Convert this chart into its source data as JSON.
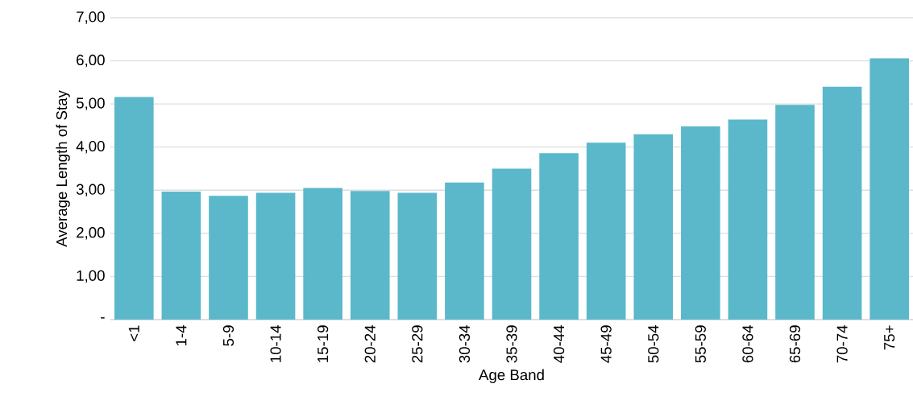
{
  "chart_data": {
    "type": "bar",
    "xlabel": "Age Band",
    "ylabel": "Average Length of Stay",
    "categories": [
      "<1",
      "1-4",
      "5-9",
      "10-14",
      "15-19",
      "20-24",
      "25-29",
      "30-34",
      "35-39",
      "40-44",
      "45-49",
      "50-54",
      "55-59",
      "60-64",
      "65-69",
      "70-74",
      "75+"
    ],
    "values": [
      5.16,
      2.97,
      2.87,
      2.94,
      3.05,
      2.98,
      2.94,
      3.18,
      3.5,
      3.86,
      4.1,
      4.3,
      4.48,
      4.64,
      4.98,
      5.4,
      6.06
    ],
    "color": "#5bb8cb",
    "ylim": [
      0,
      7
    ],
    "yticks": [
      {
        "value": 0,
        "label": "-"
      },
      {
        "value": 1,
        "label": "1,00"
      },
      {
        "value": 2,
        "label": "2,00"
      },
      {
        "value": 3,
        "label": "3,00"
      },
      {
        "value": 4,
        "label": "4,00"
      },
      {
        "value": 5,
        "label": "5,00"
      },
      {
        "value": 6,
        "label": "6,00"
      },
      {
        "value": 7,
        "label": "7,00"
      }
    ],
    "grid": "y"
  }
}
